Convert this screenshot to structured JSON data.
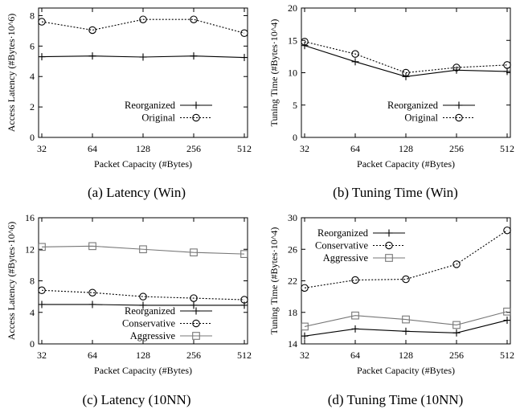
{
  "chart_data": [
    {
      "type": "line",
      "caption": "(a) Latency (Win)",
      "xlabel": "Packet Capacity (#Bytes)",
      "ylabel": "Access Latency (#Bytes·10^6)",
      "categories": [
        "32",
        "64",
        "128",
        "256",
        "512"
      ],
      "ylim": [
        0,
        8.5
      ],
      "yticks": [
        0,
        2,
        4,
        6,
        8
      ],
      "legend_position": "bottom-right",
      "series": [
        {
          "name": "Reorganized",
          "marker": "plus",
          "style": "solid",
          "values": [
            5.3,
            5.35,
            5.28,
            5.35,
            5.25
          ]
        },
        {
          "name": "Original",
          "marker": "circle",
          "style": "dotted",
          "values": [
            7.6,
            7.05,
            7.75,
            7.75,
            6.85
          ]
        }
      ]
    },
    {
      "type": "line",
      "caption": "(b) Tuning Time (Win)",
      "xlabel": "Packet Capacity (#Bytes)",
      "ylabel": "Tuning Time (#Bytes·10^4)",
      "categories": [
        "32",
        "64",
        "128",
        "256",
        "512"
      ],
      "ylim": [
        0,
        20
      ],
      "yticks": [
        0,
        5,
        10,
        15,
        20
      ],
      "legend_position": "bottom-right",
      "series": [
        {
          "name": "Reorganized",
          "marker": "plus",
          "style": "solid",
          "values": [
            14.2,
            11.7,
            9.4,
            10.4,
            10.2
          ]
        },
        {
          "name": "Original",
          "marker": "circle",
          "style": "dotted",
          "values": [
            14.8,
            12.9,
            10.0,
            10.8,
            11.2
          ]
        }
      ]
    },
    {
      "type": "line",
      "caption": "(c) Latency (10NN)",
      "xlabel": "Packet Capacity (#Bytes)",
      "ylabel": "Access Latency (#Bytes·10^6)",
      "categories": [
        "32",
        "64",
        "128",
        "256",
        "512"
      ],
      "ylim": [
        0,
        16
      ],
      "yticks": [
        0,
        4,
        8,
        12,
        16
      ],
      "legend_position": "bottom-right",
      "series": [
        {
          "name": "Reorganized",
          "marker": "plus",
          "style": "solid",
          "values": [
            5.0,
            5.0,
            4.9,
            4.9,
            4.9
          ]
        },
        {
          "name": "Conservative",
          "marker": "circle",
          "style": "dotted",
          "values": [
            6.8,
            6.5,
            6.0,
            5.8,
            5.6
          ]
        },
        {
          "name": "Aggressive",
          "marker": "square",
          "style": "solid-gray",
          "values": [
            12.3,
            12.4,
            12.0,
            11.6,
            11.4
          ]
        }
      ]
    },
    {
      "type": "line",
      "caption": "(d) Tuning Time (10NN)",
      "xlabel": "Packet Capacity (#Bytes)",
      "ylabel": "Tuning Time (#Bytes·10^4)",
      "categories": [
        "32",
        "64",
        "128",
        "256",
        "512"
      ],
      "ylim": [
        14,
        30
      ],
      "yticks": [
        14,
        18,
        22,
        26,
        30
      ],
      "legend_position": "top-left",
      "series": [
        {
          "name": "Reorganized",
          "marker": "plus",
          "style": "solid",
          "values": [
            15.0,
            15.9,
            15.6,
            15.4,
            17.0
          ]
        },
        {
          "name": "Conservative",
          "marker": "circle",
          "style": "dotted",
          "values": [
            21.1,
            22.1,
            22.2,
            24.1,
            28.4
          ]
        },
        {
          "name": "Aggressive",
          "marker": "square",
          "style": "solid-gray",
          "values": [
            16.2,
            17.6,
            17.1,
            16.4,
            18.1
          ]
        }
      ]
    }
  ]
}
